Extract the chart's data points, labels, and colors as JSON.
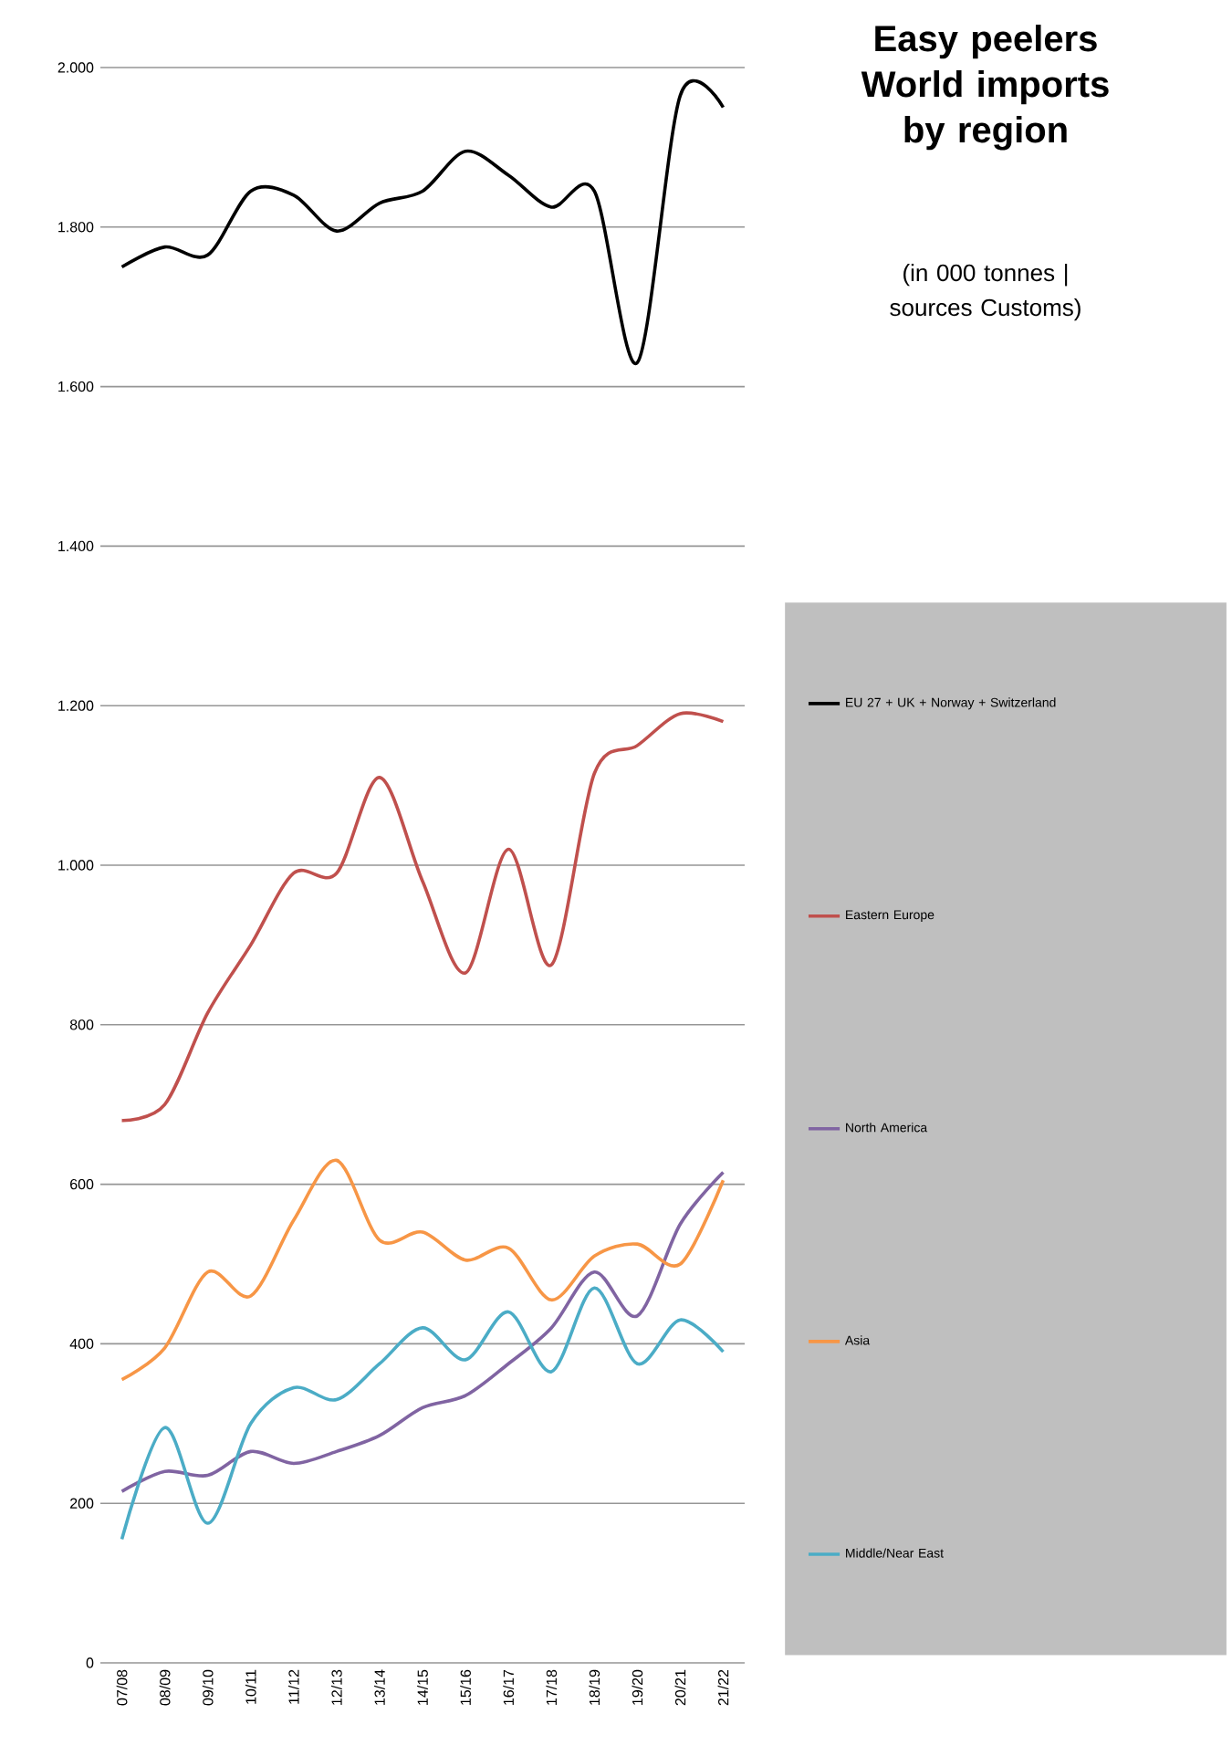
{
  "chart_data": {
    "type": "line",
    "title": "Easy peelers World imports by region",
    "subtitle": "(in 000 tonnes | sources Customs)",
    "categories": [
      "07/08",
      "08/09",
      "09/10",
      "10/11",
      "11/12",
      "12/13",
      "13/14",
      "14/15",
      "15/16",
      "16/17",
      "17/18",
      "18/19",
      "19/20",
      "20/21",
      "21/22"
    ],
    "series": [
      {
        "name": "EU 27 + UK + Norway + Switzerland",
        "color": "#000000",
        "values": [
          1750,
          1775,
          1765,
          1845,
          1840,
          1795,
          1830,
          1845,
          1895,
          1865,
          1825,
          1845,
          1630,
          1965,
          1950
        ]
      },
      {
        "name": "Eastern Europe",
        "color": "#c0504d",
        "values": [
          680,
          700,
          815,
          900,
          990,
          990,
          1110,
          980,
          865,
          1020,
          875,
          1115,
          1150,
          1190,
          1180
        ]
      },
      {
        "name": "North America",
        "color": "#8064a2",
        "values": [
          215,
          240,
          235,
          265,
          250,
          265,
          285,
          320,
          335,
          375,
          420,
          490,
          435,
          550,
          615
        ]
      },
      {
        "name": "Asia",
        "color": "#f79646",
        "values": [
          355,
          395,
          490,
          460,
          555,
          630,
          530,
          540,
          505,
          520,
          455,
          510,
          525,
          500,
          605
        ]
      },
      {
        "name": "Middle/Near East",
        "color": "#4bacc6",
        "values": [
          155,
          295,
          175,
          300,
          345,
          330,
          375,
          420,
          380,
          440,
          365,
          470,
          375,
          430,
          390
        ]
      }
    ],
    "ylim": [
      0,
      2000
    ],
    "yticks": [
      0,
      200,
      400,
      600,
      800,
      {
        "value": 1000,
        "label": "1.000"
      },
      {
        "value": 1200,
        "label": "1.200"
      },
      {
        "value": 1400,
        "label": "1.400"
      },
      {
        "value": 1600,
        "label": "1.600"
      },
      {
        "value": 1800,
        "label": "1.800"
      },
      {
        "value": 2000,
        "label": "2.000"
      }
    ],
    "grid": "y",
    "legend": "right",
    "marker": "none",
    "line_style": "solid"
  }
}
